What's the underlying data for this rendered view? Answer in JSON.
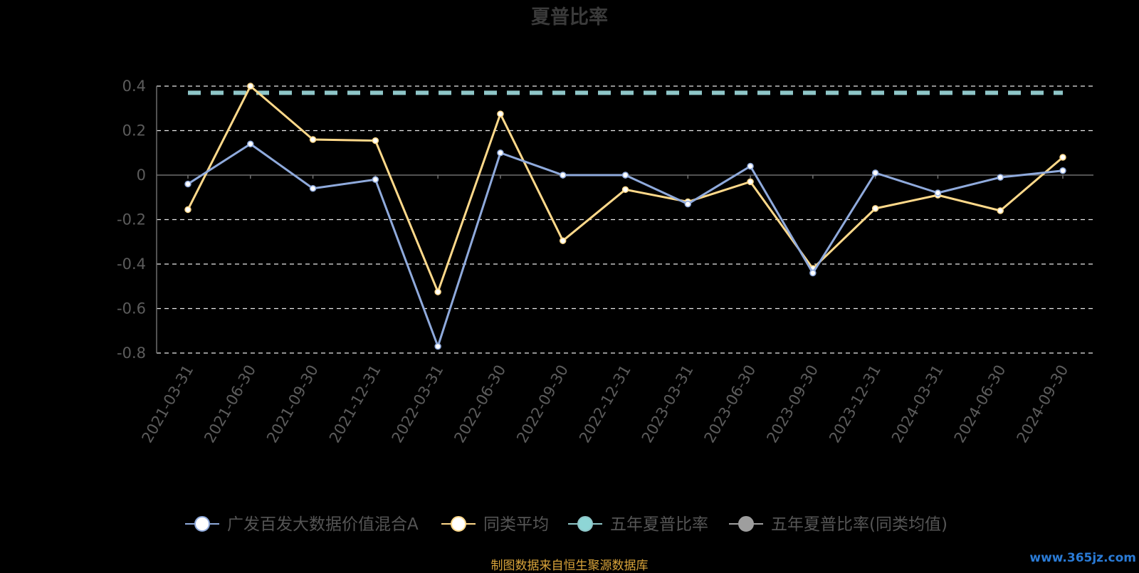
{
  "chart_data": {
    "type": "line",
    "title": "夏普比率",
    "x": [
      "2021-03-31",
      "2021-06-30",
      "2021-09-30",
      "2021-12-31",
      "2022-03-31",
      "2022-06-30",
      "2022-09-30",
      "2022-12-31",
      "2023-03-31",
      "2023-06-30",
      "2023-09-30",
      "2023-12-31",
      "2024-03-31",
      "2024-06-30",
      "2024-09-30"
    ],
    "ylim": [
      -0.8,
      0.4
    ],
    "yticks": [
      0.4,
      0.2,
      0,
      -0.2,
      -0.4,
      -0.6,
      -0.8
    ],
    "ytick_labels": [
      "0.4",
      "0.2",
      "0",
      "-0.2",
      "-0.4",
      "-0.6",
      "-0.8"
    ],
    "grid": true,
    "legend_position": "bottom",
    "series": [
      {
        "name": "广发百发大数据价值混合A",
        "color": "#8faadc",
        "values": [
          -0.04,
          0.14,
          -0.06,
          -0.02,
          -0.77,
          0.1,
          0.0,
          0.0,
          -0.13,
          0.04,
          -0.44,
          0.01,
          -0.08,
          -0.01,
          0.02
        ]
      },
      {
        "name": "同类平均",
        "color": "#ffd98a",
        "values": [
          -0.155,
          0.4,
          0.16,
          0.155,
          -0.525,
          0.275,
          -0.295,
          -0.065,
          -0.12,
          -0.03,
          -0.42,
          -0.15,
          -0.09,
          -0.16,
          0.08
        ]
      },
      {
        "name": "五年夏普比率",
        "color": "#8ec6c8",
        "constant": 0.37
      },
      {
        "name": "五年夏普比率(同类均值)",
        "color": "#9e9e9e"
      }
    ]
  },
  "footer": {
    "source": "制图数据来自恒生聚源数据库",
    "watermark": "www.365jz.com"
  }
}
